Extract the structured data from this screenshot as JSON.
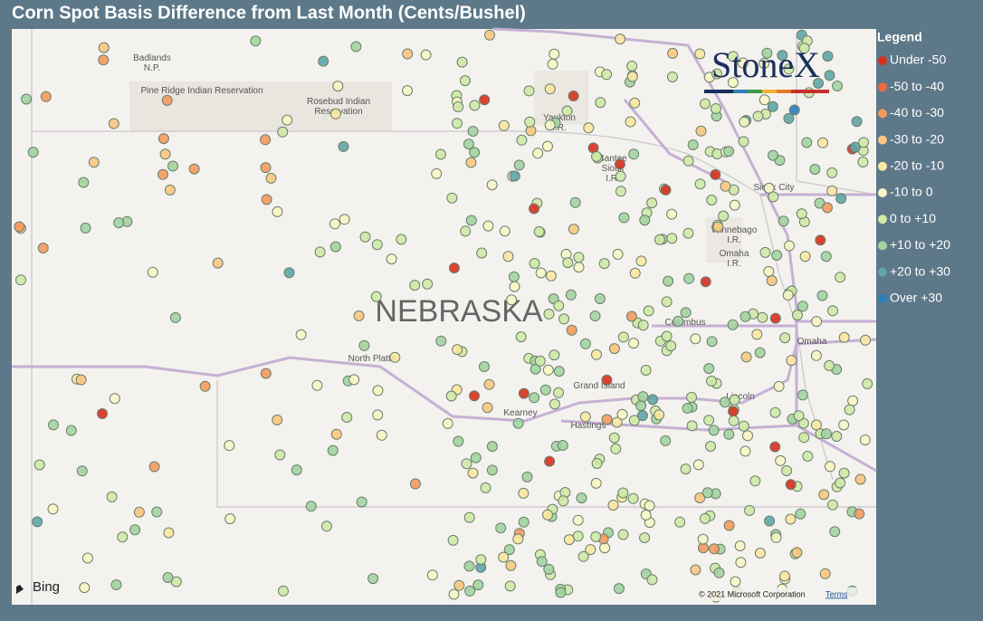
{
  "header": {
    "title": "Corn Spot Basis Difference from Last Month (Cents/Bushel)"
  },
  "legend": {
    "title": "Legend",
    "items": [
      {
        "label": "Under -50",
        "color": "#d7301f"
      },
      {
        "label": "-50 to -40",
        "color": "#ec6a3f"
      },
      {
        "label": "-40 to -30",
        "color": "#f39a5c"
      },
      {
        "label": "-30 to -20",
        "color": "#f8c67f"
      },
      {
        "label": "-20 to -10",
        "color": "#fbe7a1"
      },
      {
        "label": "-10 to 0",
        "color": "#f8f6c4"
      },
      {
        "label": "0 to +10",
        "color": "#cfe9a6"
      },
      {
        "label": "+10 to +20",
        "color": "#a2d4a0"
      },
      {
        "label": "+20 to +30",
        "color": "#5fa6a6"
      },
      {
        "label": "Over +30",
        "color": "#2c7fb8"
      }
    ]
  },
  "map": {
    "state_label": "NEBRASKA",
    "places": [
      {
        "name": [
          "Badlands",
          "N.P."
        ]
      },
      {
        "name": [
          "Pine Ridge Indian Reservation"
        ]
      },
      {
        "name": [
          "Rosebud Indian",
          "Reservation"
        ]
      },
      {
        "name": [
          "Yankton",
          "I.R."
        ]
      },
      {
        "name": [
          "Santee",
          "Sioux",
          "I.R."
        ]
      },
      {
        "name": [
          "Sioux City"
        ]
      },
      {
        "name": [
          "Winnebago",
          "I.R."
        ]
      },
      {
        "name": [
          "Omaha",
          "I.R."
        ]
      },
      {
        "name": [
          "North Platte"
        ]
      },
      {
        "name": [
          "Columbus"
        ]
      },
      {
        "name": [
          "Omaha"
        ]
      },
      {
        "name": [
          "Grand Island"
        ]
      },
      {
        "name": [
          "Kearney"
        ]
      },
      {
        "name": [
          "Hastings"
        ]
      },
      {
        "name": [
          "Lincoln"
        ]
      }
    ],
    "logo": "StoneX",
    "provider": "Bing",
    "copyright": "© 2021 Microsoft Corporation",
    "terms": "Terms"
  }
}
